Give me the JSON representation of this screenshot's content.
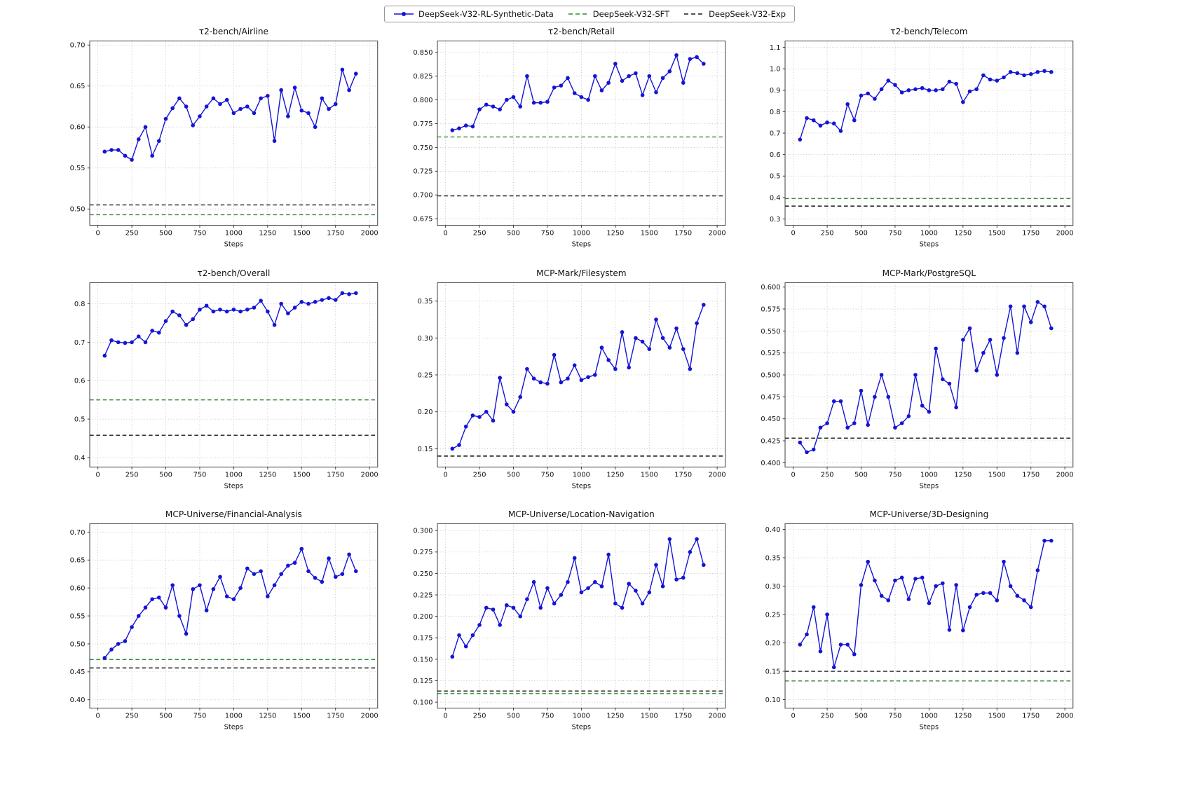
{
  "page": {
    "background": "#ffffff"
  },
  "colors": {
    "rl": "#1414d6",
    "sft": "#2e8b2e",
    "exp": "#1a1a1a",
    "grid": "#b0b0b0",
    "spine": "#333333"
  },
  "legend": {
    "position": "top-center",
    "items": [
      {
        "name": "series-rl",
        "label": "DeepSeek-V32-RL-Synthetic-Data",
        "color": "#1414d6",
        "style": "line-marker"
      },
      {
        "name": "series-sft",
        "label": "DeepSeek-V32-SFT",
        "color": "#2e8b2e",
        "style": "dashed"
      },
      {
        "name": "series-exp",
        "label": "DeepSeek-V32-Exp",
        "color": "#1a1a1a",
        "style": "dashed"
      }
    ]
  },
  "chart_data": [
    {
      "type": "line",
      "title": "τ2-bench/Airline",
      "xlabel": "Steps",
      "x_start": 50,
      "x_step": 50,
      "x_end": 1900,
      "xticks": [
        0,
        250,
        500,
        750,
        1000,
        1250,
        1500,
        1750,
        2000
      ],
      "xlim": [
        -60,
        2060
      ],
      "ylim": [
        0.48,
        0.705
      ],
      "yticks": [
        0.5,
        0.55,
        0.6,
        0.65,
        0.7
      ],
      "ydecimals": 2,
      "grid": true,
      "series": {
        "rl": [
          0.57,
          0.572,
          0.572,
          0.565,
          0.56,
          0.585,
          0.6,
          0.565,
          0.583,
          0.61,
          0.623,
          0.635,
          0.625,
          0.602,
          0.613,
          0.625,
          0.635,
          0.628,
          0.633,
          0.617,
          0.622,
          0.625,
          0.617,
          0.635,
          0.638,
          0.583,
          0.645,
          0.613,
          0.648,
          0.62,
          0.617,
          0.6,
          0.635,
          0.622,
          0.628,
          0.67,
          0.645,
          0.665
        ],
        "sft": 0.493,
        "exp": 0.505
      }
    },
    {
      "type": "line",
      "title": "τ2-bench/Retail",
      "xlabel": "Steps",
      "x_start": 50,
      "x_step": 50,
      "x_end": 1900,
      "xticks": [
        0,
        250,
        500,
        750,
        1000,
        1250,
        1500,
        1750,
        2000
      ],
      "xlim": [
        -60,
        2060
      ],
      "ylim": [
        0.668,
        0.862
      ],
      "yticks": [
        0.675,
        0.7,
        0.725,
        0.75,
        0.775,
        0.8,
        0.825,
        0.85
      ],
      "ydecimals": 3,
      "grid": true,
      "series": {
        "rl": [
          0.768,
          0.77,
          0.773,
          0.772,
          0.79,
          0.795,
          0.793,
          0.79,
          0.8,
          0.803,
          0.793,
          0.825,
          0.797,
          0.797,
          0.798,
          0.813,
          0.815,
          0.823,
          0.807,
          0.803,
          0.8,
          0.825,
          0.81,
          0.818,
          0.838,
          0.82,
          0.825,
          0.828,
          0.805,
          0.825,
          0.808,
          0.823,
          0.83,
          0.847,
          0.818,
          0.843,
          0.845,
          0.838
        ],
        "sft": 0.761,
        "exp": 0.699
      }
    },
    {
      "type": "line",
      "title": "τ2-bench/Telecom",
      "xlabel": "Steps",
      "x_start": 50,
      "x_step": 50,
      "x_end": 1900,
      "xticks": [
        0,
        250,
        500,
        750,
        1000,
        1250,
        1500,
        1750,
        2000
      ],
      "xlim": [
        -60,
        2060
      ],
      "ylim": [
        0.27,
        1.13
      ],
      "yticks": [
        0.3,
        0.4,
        0.5,
        0.6,
        0.7,
        0.8,
        0.9,
        1.0,
        1.1
      ],
      "ydecimals": 1,
      "grid": true,
      "series": {
        "rl": [
          0.67,
          0.77,
          0.76,
          0.735,
          0.75,
          0.745,
          0.71,
          0.835,
          0.76,
          0.875,
          0.885,
          0.86,
          0.905,
          0.945,
          0.925,
          0.89,
          0.9,
          0.905,
          0.91,
          0.9,
          0.9,
          0.905,
          0.94,
          0.93,
          0.845,
          0.895,
          0.905,
          0.97,
          0.95,
          0.945,
          0.96,
          0.985,
          0.98,
          0.97,
          0.975,
          0.985,
          0.99,
          0.985
        ],
        "sft": 0.395,
        "exp": 0.36
      }
    },
    {
      "type": "line",
      "title": "τ2-bench/Overall",
      "xlabel": "Steps",
      "x_start": 50,
      "x_step": 50,
      "x_end": 1900,
      "xticks": [
        0,
        250,
        500,
        750,
        1000,
        1250,
        1500,
        1750,
        2000
      ],
      "xlim": [
        -60,
        2060
      ],
      "ylim": [
        0.375,
        0.855
      ],
      "yticks": [
        0.4,
        0.5,
        0.6,
        0.7,
        0.8
      ],
      "ydecimals": 1,
      "grid": true,
      "series": {
        "rl": [
          0.665,
          0.705,
          0.7,
          0.698,
          0.7,
          0.715,
          0.7,
          0.73,
          0.725,
          0.755,
          0.78,
          0.77,
          0.745,
          0.76,
          0.785,
          0.795,
          0.78,
          0.785,
          0.78,
          0.785,
          0.78,
          0.785,
          0.79,
          0.808,
          0.78,
          0.745,
          0.8,
          0.775,
          0.79,
          0.805,
          0.8,
          0.805,
          0.81,
          0.815,
          0.81,
          0.828,
          0.825,
          0.828
        ],
        "sft": 0.55,
        "exp": 0.458
      }
    },
    {
      "type": "line",
      "title": "MCP-Mark/Filesystem",
      "xlabel": "Steps",
      "x_start": 50,
      "x_step": 50,
      "x_end": 1900,
      "xticks": [
        0,
        250,
        500,
        750,
        1000,
        1250,
        1500,
        1750,
        2000
      ],
      "xlim": [
        -60,
        2060
      ],
      "ylim": [
        0.125,
        0.375
      ],
      "yticks": [
        0.15,
        0.2,
        0.25,
        0.3,
        0.35
      ],
      "ydecimals": 2,
      "grid": true,
      "series": {
        "rl": [
          0.15,
          0.155,
          0.18,
          0.195,
          0.193,
          0.2,
          0.188,
          0.246,
          0.21,
          0.2,
          0.22,
          0.258,
          0.245,
          0.24,
          0.238,
          0.277,
          0.24,
          0.245,
          0.263,
          0.243,
          0.247,
          0.25,
          0.287,
          0.27,
          0.258,
          0.308,
          0.26,
          0.3,
          0.295,
          0.285,
          0.325,
          0.3,
          0.287,
          0.313,
          0.285,
          0.258,
          0.32,
          0.345
        ],
        "sft": 0.14,
        "exp": 0.14
      }
    },
    {
      "type": "line",
      "title": "MCP-Mark/PostgreSQL",
      "xlabel": "Steps",
      "x_start": 50,
      "x_step": 50,
      "x_end": 1900,
      "xticks": [
        0,
        250,
        500,
        750,
        1000,
        1250,
        1500,
        1750,
        2000
      ],
      "xlim": [
        -60,
        2060
      ],
      "ylim": [
        0.395,
        0.605
      ],
      "yticks": [
        0.4,
        0.425,
        0.45,
        0.475,
        0.5,
        0.525,
        0.55,
        0.575,
        0.6
      ],
      "ydecimals": 3,
      "grid": true,
      "series": {
        "rl": [
          0.423,
          0.412,
          0.415,
          0.44,
          0.445,
          0.47,
          0.47,
          0.44,
          0.445,
          0.482,
          0.443,
          0.475,
          0.5,
          0.475,
          0.44,
          0.445,
          0.453,
          0.5,
          0.465,
          0.458,
          0.53,
          0.495,
          0.49,
          0.463,
          0.54,
          0.553,
          0.505,
          0.525,
          0.54,
          0.5,
          0.542,
          0.578,
          0.525,
          0.578,
          0.56,
          0.583,
          0.578,
          0.553
        ],
        "sft": 0.428,
        "exp": 0.428
      }
    },
    {
      "type": "line",
      "title": "MCP-Universe/Financial-Analysis",
      "xlabel": "Steps",
      "x_start": 50,
      "x_step": 50,
      "x_end": 1900,
      "xticks": [
        0,
        250,
        500,
        750,
        1000,
        1250,
        1500,
        1750,
        2000
      ],
      "xlim": [
        -60,
        2060
      ],
      "ylim": [
        0.385,
        0.715
      ],
      "yticks": [
        0.4,
        0.45,
        0.5,
        0.55,
        0.6,
        0.65,
        0.7
      ],
      "ydecimals": 2,
      "grid": true,
      "series": {
        "rl": [
          0.475,
          0.49,
          0.5,
          0.505,
          0.53,
          0.55,
          0.565,
          0.58,
          0.583,
          0.565,
          0.605,
          0.55,
          0.518,
          0.598,
          0.605,
          0.56,
          0.598,
          0.62,
          0.585,
          0.58,
          0.6,
          0.635,
          0.625,
          0.63,
          0.585,
          0.605,
          0.625,
          0.64,
          0.645,
          0.67,
          0.63,
          0.618,
          0.611,
          0.653,
          0.62,
          0.625,
          0.66,
          0.63
        ],
        "sft": 0.472,
        "exp": 0.457
      }
    },
    {
      "type": "line",
      "title": "MCP-Universe/Location-Navigation",
      "xlabel": "Steps",
      "x_start": 50,
      "x_step": 50,
      "x_end": 1900,
      "xticks": [
        0,
        250,
        500,
        750,
        1000,
        1250,
        1500,
        1750,
        2000
      ],
      "xlim": [
        -60,
        2060
      ],
      "ylim": [
        0.093,
        0.308
      ],
      "yticks": [
        0.1,
        0.125,
        0.15,
        0.175,
        0.2,
        0.225,
        0.25,
        0.275,
        0.3
      ],
      "ydecimals": 3,
      "grid": true,
      "series": {
        "rl": [
          0.153,
          0.178,
          0.165,
          0.178,
          0.19,
          0.21,
          0.208,
          0.19,
          0.213,
          0.21,
          0.2,
          0.22,
          0.24,
          0.21,
          0.233,
          0.215,
          0.225,
          0.24,
          0.268,
          0.228,
          0.233,
          0.24,
          0.235,
          0.272,
          0.215,
          0.21,
          0.238,
          0.23,
          0.215,
          0.228,
          0.26,
          0.235,
          0.29,
          0.243,
          0.245,
          0.275,
          0.29,
          0.26
        ],
        "sft": 0.11,
        "exp": 0.113
      }
    },
    {
      "type": "line",
      "title": "MCP-Universe/3D-Designing",
      "xlabel": "Steps",
      "x_start": 50,
      "x_step": 50,
      "x_end": 1900,
      "xticks": [
        0,
        250,
        500,
        750,
        1000,
        1250,
        1500,
        1750,
        2000
      ],
      "xlim": [
        -60,
        2060
      ],
      "ylim": [
        0.085,
        0.41
      ],
      "yticks": [
        0.1,
        0.15,
        0.2,
        0.25,
        0.3,
        0.35,
        0.4
      ],
      "ydecimals": 2,
      "grid": true,
      "series": {
        "rl": [
          0.197,
          0.215,
          0.263,
          0.185,
          0.25,
          0.157,
          0.197,
          0.197,
          0.18,
          0.302,
          0.343,
          0.31,
          0.283,
          0.275,
          0.31,
          0.315,
          0.277,
          0.313,
          0.315,
          0.27,
          0.3,
          0.305,
          0.223,
          0.302,
          0.222,
          0.263,
          0.285,
          0.288,
          0.288,
          0.275,
          0.343,
          0.3,
          0.283,
          0.275,
          0.263,
          0.328,
          0.38,
          0.38
        ],
        "sft": 0.133,
        "exp": 0.15
      }
    }
  ]
}
